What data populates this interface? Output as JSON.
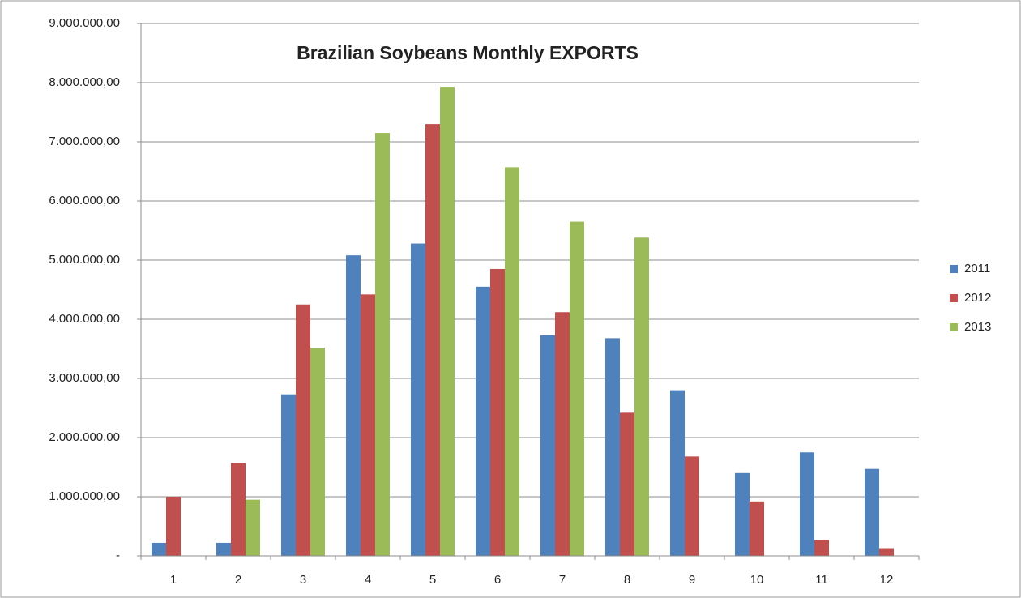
{
  "chart_data": {
    "type": "bar",
    "title": "Brazilian Soybeans Monthly EXPORTS",
    "categories": [
      "1",
      "2",
      "3",
      "4",
      "5",
      "6",
      "7",
      "8",
      "9",
      "10",
      "11",
      "12"
    ],
    "series": [
      {
        "name": "2011",
        "color": "#4f81bd",
        "values": [
          220000,
          220000,
          2730000,
          5080000,
          5280000,
          4550000,
          3730000,
          3680000,
          2800000,
          1400000,
          1750000,
          1470000
        ]
      },
      {
        "name": "2012",
        "color": "#c0504d",
        "values": [
          1000000,
          1570000,
          4250000,
          4420000,
          7300000,
          4850000,
          4120000,
          2420000,
          1680000,
          920000,
          270000,
          130000
        ]
      },
      {
        "name": "2013",
        "color": "#9bbb59",
        "values": [
          null,
          950000,
          3520000,
          7150000,
          7930000,
          6570000,
          5650000,
          5380000,
          null,
          null,
          null,
          null
        ]
      }
    ],
    "ylim": [
      0,
      9000000
    ],
    "yticks": [
      {
        "value": 0,
        "label": "-"
      },
      {
        "value": 1000000,
        "label": "1.000.000,00"
      },
      {
        "value": 2000000,
        "label": "2.000.000,00"
      },
      {
        "value": 3000000,
        "label": "3.000.000,00"
      },
      {
        "value": 4000000,
        "label": "4.000.000,00"
      },
      {
        "value": 5000000,
        "label": "5.000.000,00"
      },
      {
        "value": 6000000,
        "label": "6.000.000,00"
      },
      {
        "value": 7000000,
        "label": "7.000.000,00"
      },
      {
        "value": 8000000,
        "label": "8.000.000,00"
      },
      {
        "value": 9000000,
        "label": "9.000.000,00"
      }
    ],
    "grid": true,
    "legend": "right"
  }
}
